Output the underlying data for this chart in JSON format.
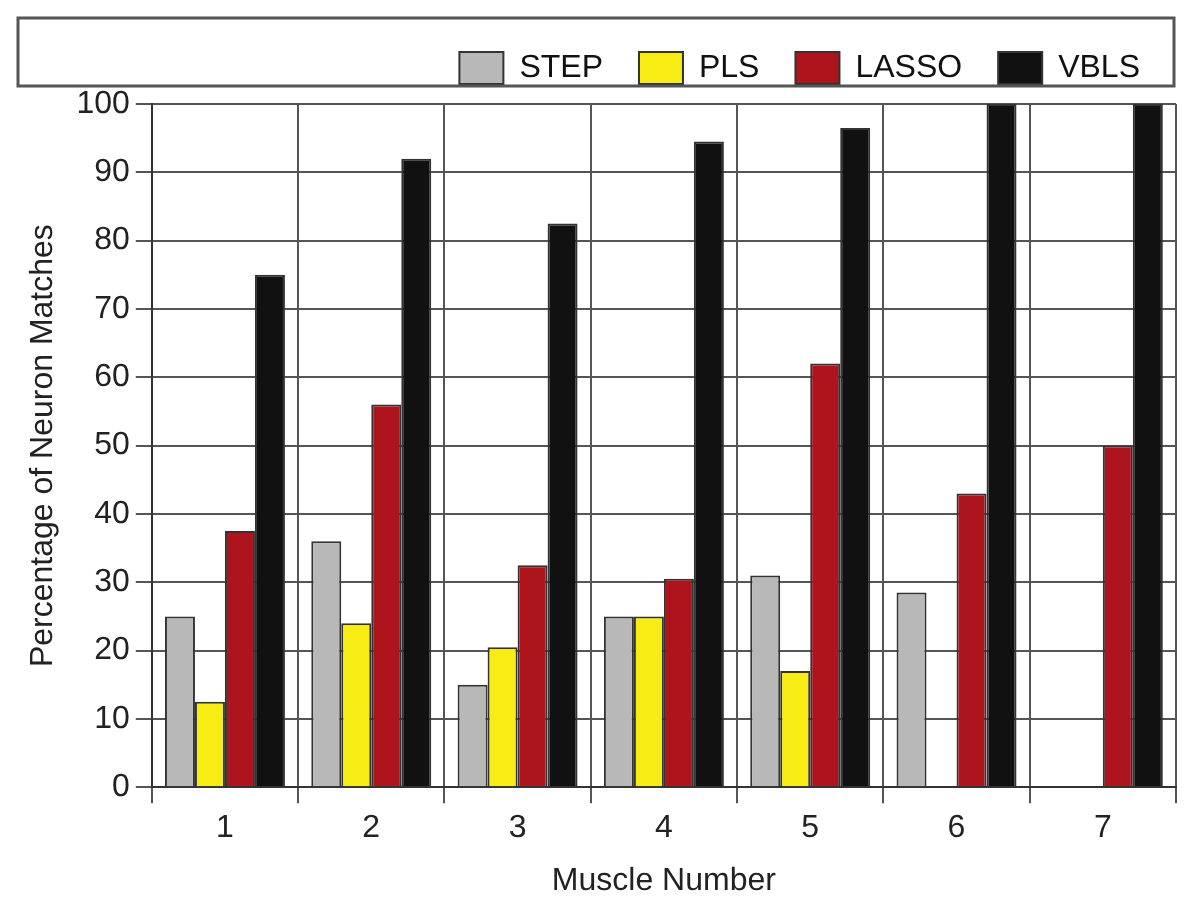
{
  "chart_data": {
    "type": "bar",
    "xlabel": "Muscle Number",
    "ylabel": "Percentage of Neuron Matches",
    "categories": [
      "1",
      "2",
      "3",
      "4",
      "5",
      "6",
      "7"
    ],
    "series": [
      {
        "name": "STEP",
        "color": "#b8b8b8",
        "values": [
          25,
          36,
          15,
          25,
          31,
          28.5,
          0
        ]
      },
      {
        "name": "PLS",
        "color": "#f7ec13",
        "values": [
          12.5,
          24,
          20.5,
          25,
          17,
          0,
          0
        ]
      },
      {
        "name": "LASSO",
        "color": "#ad141c",
        "values": [
          37.5,
          56,
          32.5,
          30.5,
          62,
          43,
          50
        ]
      },
      {
        "name": "VBLS",
        "color": "#111111",
        "values": [
          75,
          92,
          82.5,
          94.5,
          96.5,
          100,
          100
        ]
      }
    ],
    "ylim": [
      0,
      100
    ],
    "yticks": [
      0,
      10,
      20,
      30,
      40,
      50,
      60,
      70,
      80,
      90,
      100
    ],
    "grid": true,
    "legend": "top right"
  }
}
